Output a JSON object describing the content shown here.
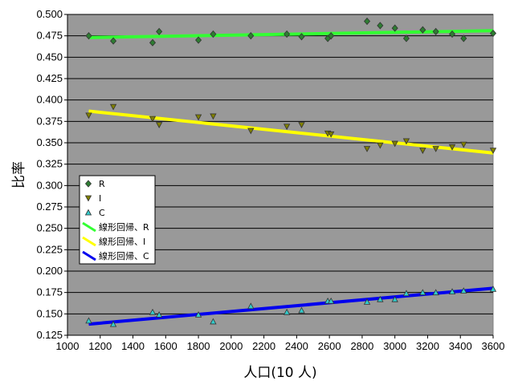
{
  "chart_data": {
    "type": "scatter",
    "title": "",
    "xlabel": "人口(10 人)",
    "ylabel": "比率",
    "xlim": [
      1000,
      3600
    ],
    "ylim": [
      0.125,
      0.5
    ],
    "x_ticks": [
      "1000",
      "1200",
      "1400",
      "1600",
      "1800",
      "2000",
      "2200",
      "2400",
      "2600",
      "2800",
      "3000",
      "3200",
      "3400",
      "3600"
    ],
    "y_ticks": [
      "0.125",
      "0.150",
      "0.175",
      "0.200",
      "0.225",
      "0.250",
      "0.275",
      "0.300",
      "0.325",
      "0.350",
      "0.375",
      "0.400",
      "0.425",
      "0.450",
      "0.475",
      "0.500"
    ],
    "grid": "horizontal",
    "legend_position": "middle-left",
    "colors": {
      "plot_bg": "#999999",
      "R_marker": "#2e7d32",
      "I_marker": "#808000",
      "C_marker": "#33cccc",
      "R_line": "#33ff33",
      "I_line": "#ffff00",
      "C_line": "#0000ee"
    },
    "series": [
      {
        "name": "R",
        "marker": "diamond",
        "points": [
          [
            1130,
            0.475
          ],
          [
            1280,
            0.469
          ],
          [
            1520,
            0.467
          ],
          [
            1560,
            0.48
          ],
          [
            1800,
            0.47
          ],
          [
            1890,
            0.477
          ],
          [
            2120,
            0.475
          ],
          [
            2340,
            0.477
          ],
          [
            2430,
            0.474
          ],
          [
            2590,
            0.472
          ],
          [
            2610,
            0.475
          ],
          [
            2830,
            0.492
          ],
          [
            2910,
            0.487
          ],
          [
            3000,
            0.484
          ],
          [
            3070,
            0.472
          ],
          [
            3170,
            0.482
          ],
          [
            3250,
            0.48
          ],
          [
            3350,
            0.477
          ],
          [
            3420,
            0.472
          ],
          [
            3600,
            0.478
          ]
        ]
      },
      {
        "name": "I",
        "marker": "triangle-down",
        "points": [
          [
            1130,
            0.382
          ],
          [
            1280,
            0.392
          ],
          [
            1520,
            0.378
          ],
          [
            1560,
            0.371
          ],
          [
            1800,
            0.38
          ],
          [
            1890,
            0.381
          ],
          [
            2120,
            0.364
          ],
          [
            2340,
            0.369
          ],
          [
            2430,
            0.371
          ],
          [
            2590,
            0.361
          ],
          [
            2610,
            0.36
          ],
          [
            2830,
            0.343
          ],
          [
            2910,
            0.347
          ],
          [
            3000,
            0.349
          ],
          [
            3070,
            0.352
          ],
          [
            3170,
            0.341
          ],
          [
            3250,
            0.343
          ],
          [
            3350,
            0.345
          ],
          [
            3420,
            0.348
          ],
          [
            3600,
            0.341
          ]
        ]
      },
      {
        "name": "C",
        "marker": "triangle-up",
        "points": [
          [
            1130,
            0.142
          ],
          [
            1280,
            0.138
          ],
          [
            1520,
            0.152
          ],
          [
            1560,
            0.149
          ],
          [
            1800,
            0.149
          ],
          [
            1890,
            0.141
          ],
          [
            2120,
            0.159
          ],
          [
            2340,
            0.152
          ],
          [
            2430,
            0.154
          ],
          [
            2590,
            0.165
          ],
          [
            2610,
            0.165
          ],
          [
            2830,
            0.164
          ],
          [
            2910,
            0.167
          ],
          [
            3000,
            0.167
          ],
          [
            3070,
            0.174
          ],
          [
            3170,
            0.175
          ],
          [
            3250,
            0.175
          ],
          [
            3350,
            0.176
          ],
          [
            3420,
            0.177
          ],
          [
            3600,
            0.179
          ]
        ]
      }
    ],
    "trendlines": [
      {
        "name": "線形回帰、R",
        "series": "R",
        "x": [
          1130,
          3600
        ],
        "y": [
          0.473,
          0.481
        ]
      },
      {
        "name": "線形回帰、I",
        "series": "I",
        "x": [
          1130,
          3600
        ],
        "y": [
          0.387,
          0.338
        ]
      },
      {
        "name": "線形回帰、C",
        "series": "C",
        "x": [
          1130,
          3600
        ],
        "y": [
          0.138,
          0.18
        ]
      }
    ]
  }
}
